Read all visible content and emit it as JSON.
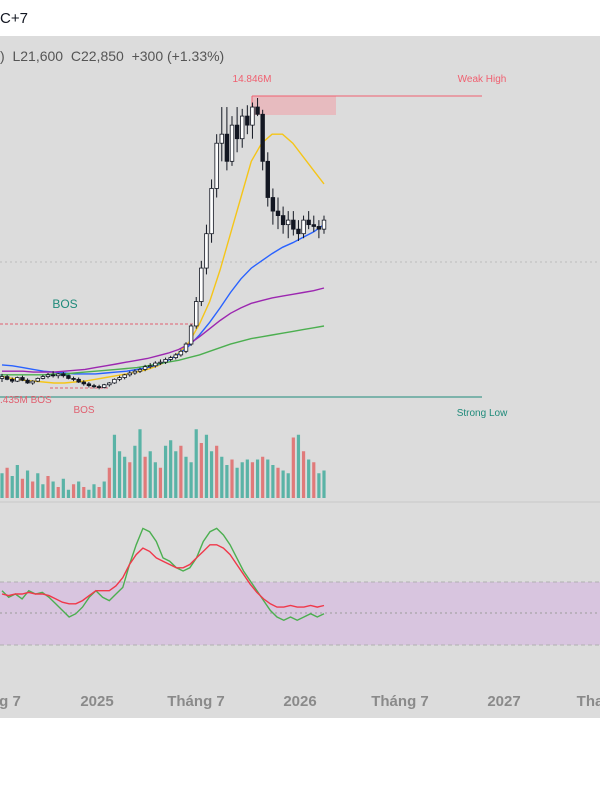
{
  "header": {
    "timezone": "C+7",
    "ohlc": {
      "open_fragment": ")",
      "low_prefix": "L",
      "low": "21,600",
      "close_prefix": "C",
      "close": "22,850",
      "change": "+300 (+1.33%)"
    }
  },
  "annotations": {
    "peak_label": "14.846M",
    "weak_high": "Weak High",
    "strong_low": "Strong Low",
    "bos_upper": "BOS",
    "bos_low_left": ".435M BOS",
    "bos_low": "BOS"
  },
  "x_axis": {
    "labels": [
      "g 7",
      "2025",
      "Tháng 7",
      "2026",
      "Tháng 7",
      "2027",
      "Tha"
    ]
  },
  "colors": {
    "up_volume": "#5ab3a6",
    "down_volume": "#e07a7a",
    "candle": "#131722",
    "ma_yellow": "#f5c518",
    "ma_blue": "#2962ff",
    "ma_purple": "#9c27b0",
    "ma_green": "#4caf50",
    "weak_high": "#f06070",
    "strong_low": "#1e8a7a",
    "rsi_green": "#4caf50",
    "rsi_red": "#f0384a",
    "rsi_band": "#d7bfe0"
  },
  "chart_data": {
    "type": "candlestick",
    "price_candles": [
      [
        30,
        35,
        26,
        32
      ],
      [
        32,
        34,
        28,
        29
      ],
      [
        29,
        31,
        25,
        27
      ],
      [
        27,
        32,
        26,
        31
      ],
      [
        31,
        33,
        27,
        28
      ],
      [
        28,
        30,
        24,
        25
      ],
      [
        25,
        28,
        23,
        27
      ],
      [
        27,
        31,
        26,
        30
      ],
      [
        30,
        34,
        29,
        32
      ],
      [
        32,
        36,
        30,
        34
      ],
      [
        34,
        38,
        31,
        33
      ],
      [
        33,
        36,
        30,
        35
      ],
      [
        35,
        37,
        31,
        33
      ],
      [
        33,
        34,
        29,
        30
      ],
      [
        30,
        32,
        27,
        29
      ],
      [
        29,
        31,
        25,
        26
      ],
      [
        26,
        28,
        22,
        24
      ],
      [
        24,
        26,
        20,
        22
      ],
      [
        22,
        24,
        19,
        21
      ],
      [
        21,
        23,
        18,
        20
      ],
      [
        20,
        24,
        19,
        23
      ],
      [
        23,
        26,
        21,
        25
      ],
      [
        25,
        30,
        24,
        29
      ],
      [
        29,
        33,
        27,
        31
      ],
      [
        31,
        35,
        29,
        34
      ],
      [
        34,
        38,
        32,
        36
      ],
      [
        36,
        40,
        34,
        38
      ],
      [
        38,
        42,
        36,
        40
      ],
      [
        40,
        45,
        38,
        43
      ],
      [
        43,
        47,
        41,
        44
      ],
      [
        44,
        49,
        42,
        47
      ],
      [
        47,
        51,
        45,
        48
      ],
      [
        48,
        53,
        46,
        51
      ],
      [
        51,
        55,
        49,
        53
      ],
      [
        53,
        58,
        51,
        56
      ],
      [
        56,
        62,
        54,
        60
      ],
      [
        60,
        70,
        58,
        68
      ],
      [
        68,
        90,
        66,
        88
      ],
      [
        88,
        120,
        85,
        115
      ],
      [
        115,
        160,
        110,
        152
      ],
      [
        152,
        200,
        145,
        190
      ],
      [
        190,
        250,
        180,
        240
      ],
      [
        240,
        300,
        230,
        290
      ],
      [
        290,
        330,
        270,
        300
      ],
      [
        300,
        330,
        260,
        270
      ],
      [
        270,
        320,
        265,
        310
      ],
      [
        310,
        330,
        280,
        295
      ],
      [
        295,
        328,
        285,
        320
      ],
      [
        320,
        332,
        300,
        310
      ],
      [
        310,
        335,
        295,
        330
      ],
      [
        330,
        340,
        320,
        322
      ],
      [
        322,
        327,
        260,
        270
      ],
      [
        270,
        280,
        220,
        230
      ],
      [
        230,
        240,
        200,
        215
      ],
      [
        215,
        230,
        195,
        210
      ],
      [
        210,
        220,
        190,
        200
      ],
      [
        200,
        215,
        185,
        205
      ],
      [
        205,
        215,
        188,
        195
      ],
      [
        195,
        205,
        182,
        190
      ],
      [
        190,
        210,
        185,
        205
      ],
      [
        205,
        215,
        195,
        200
      ],
      [
        200,
        210,
        192,
        198
      ],
      [
        198,
        205,
        185,
        195
      ],
      [
        195,
        210,
        190,
        205
      ]
    ],
    "ma_lines": [
      {
        "color": "yellow",
        "values": [
          32,
          30,
          28,
          27,
          26,
          25,
          25,
          26,
          27,
          29,
          31,
          33,
          35,
          37,
          40,
          44,
          50,
          58,
          70,
          90,
          115,
          150,
          190,
          230,
          270,
          290,
          300,
          300,
          290,
          275,
          260,
          245
        ]
      },
      {
        "color": "blue",
        "values": [
          45,
          44,
          42,
          40,
          38,
          37,
          36,
          35,
          35,
          35,
          36,
          37,
          38,
          40,
          42,
          45,
          50,
          57,
          66,
          78,
          92,
          108,
          125,
          140,
          152,
          160,
          168,
          175,
          180,
          186,
          192,
          200
        ]
      },
      {
        "color": "purple",
        "values": [
          38,
          38,
          38,
          37,
          37,
          37,
          38,
          39,
          40,
          42,
          44,
          46,
          48,
          50,
          52,
          55,
          58,
          62,
          68,
          76,
          85,
          94,
          102,
          108,
          113,
          116,
          119,
          121,
          123,
          125,
          127,
          130
        ]
      },
      {
        "color": "green",
        "values": [
          34,
          34,
          34,
          34,
          34,
          35,
          35,
          36,
          37,
          38,
          39,
          40,
          41,
          42,
          44,
          46,
          48,
          50,
          53,
          56,
          60,
          64,
          68,
          71,
          74,
          76,
          78,
          80,
          82,
          84,
          86,
          88
        ]
      }
    ],
    "volume": [
      [
        45,
        1
      ],
      [
        55,
        0
      ],
      [
        40,
        1
      ],
      [
        60,
        1
      ],
      [
        35,
        0
      ],
      [
        50,
        1
      ],
      [
        30,
        0
      ],
      [
        45,
        1
      ],
      [
        25,
        1
      ],
      [
        40,
        0
      ],
      [
        30,
        1
      ],
      [
        20,
        0
      ],
      [
        35,
        1
      ],
      [
        15,
        1
      ],
      [
        25,
        0
      ],
      [
        30,
        1
      ],
      [
        20,
        0
      ],
      [
        15,
        1
      ],
      [
        25,
        1
      ],
      [
        20,
        0
      ],
      [
        30,
        1
      ],
      [
        55,
        0
      ],
      [
        115,
        1
      ],
      [
        85,
        1
      ],
      [
        75,
        1
      ],
      [
        65,
        0
      ],
      [
        95,
        1
      ],
      [
        125,
        1
      ],
      [
        75,
        0
      ],
      [
        85,
        1
      ],
      [
        65,
        1
      ],
      [
        55,
        0
      ],
      [
        95,
        1
      ],
      [
        105,
        1
      ],
      [
        85,
        1
      ],
      [
        95,
        0
      ],
      [
        75,
        1
      ],
      [
        65,
        1
      ],
      [
        125,
        1
      ],
      [
        100,
        0
      ],
      [
        115,
        1
      ],
      [
        85,
        1
      ],
      [
        95,
        0
      ],
      [
        75,
        1
      ],
      [
        60,
        1
      ],
      [
        70,
        0
      ],
      [
        55,
        1
      ],
      [
        65,
        1
      ],
      [
        70,
        1
      ],
      [
        65,
        0
      ],
      [
        70,
        1
      ],
      [
        75,
        0
      ],
      [
        70,
        1
      ],
      [
        60,
        1
      ],
      [
        55,
        0
      ],
      [
        50,
        1
      ],
      [
        45,
        1
      ],
      [
        110,
        0
      ],
      [
        115,
        1
      ],
      [
        85,
        0
      ],
      [
        70,
        1
      ],
      [
        65,
        0
      ],
      [
        45,
        1
      ],
      [
        50,
        1
      ]
    ],
    "rsi_green": [
      52,
      48,
      50,
      47,
      52,
      50,
      51,
      48,
      44,
      40,
      36,
      38,
      42,
      48,
      52,
      48,
      46,
      50,
      54,
      68,
      80,
      90,
      88,
      82,
      72,
      70,
      66,
      64,
      66,
      72,
      82,
      88,
      90,
      86,
      80,
      72,
      64,
      58,
      52,
      46,
      40,
      36,
      34,
      36,
      34,
      36,
      38,
      36,
      38
    ],
    "rsi_red": [
      50,
      49,
      50,
      50,
      51,
      50,
      50,
      49,
      47,
      45,
      44,
      44,
      46,
      49,
      52,
      52,
      52,
      55,
      60,
      68,
      74,
      78,
      76,
      72,
      70,
      68,
      66,
      66,
      68,
      72,
      76,
      80,
      80,
      78,
      74,
      68,
      62,
      56,
      51,
      47,
      44,
      42,
      42,
      43,
      42,
      42,
      43,
      42,
      43
    ]
  }
}
